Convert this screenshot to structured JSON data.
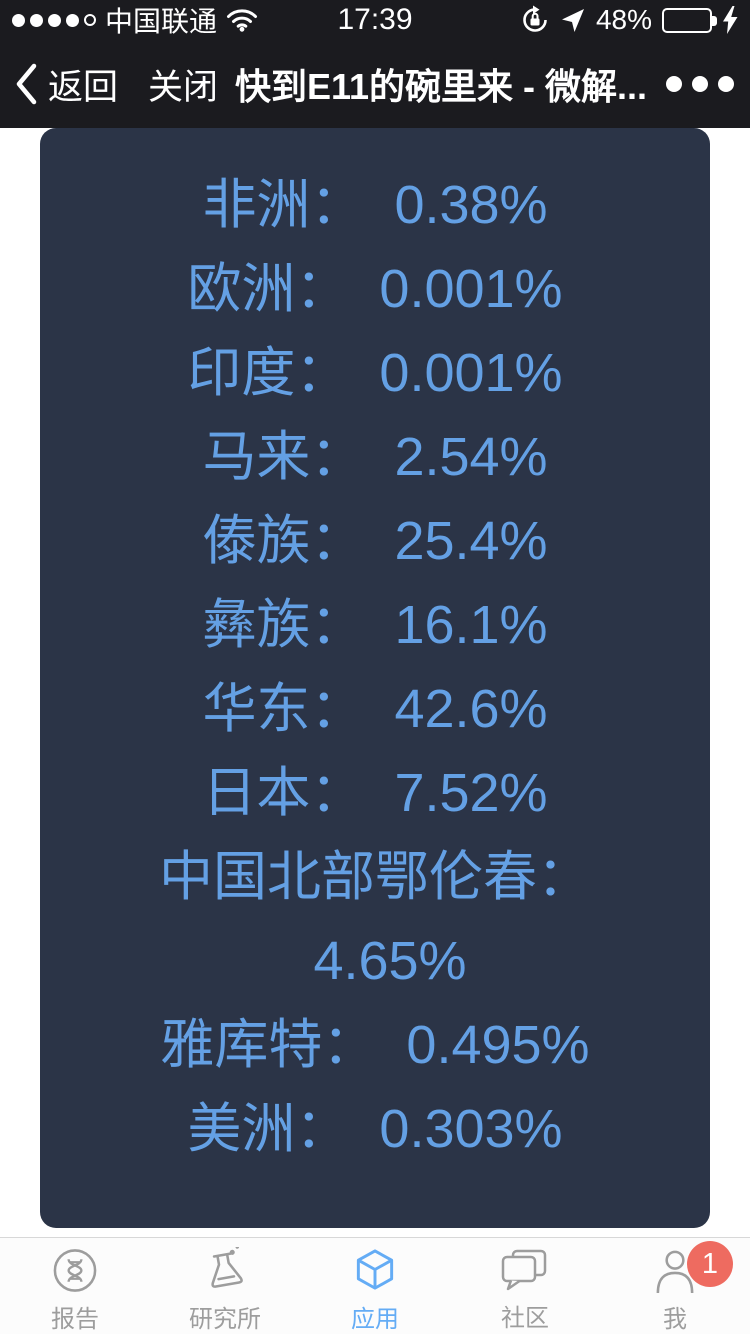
{
  "colors": {
    "chrome_bg": "#1b1b1f",
    "card_bg": "#2b3447",
    "card_text": "#64a0e4",
    "tab_active": "#64acf5",
    "tab_inactive": "#9d9d9d",
    "badge_bg": "#ee6b60",
    "battery_green": "#7bd77a",
    "tabbar_bg": "#fcfcfc",
    "tabbar_border": "#d8d8d8"
  },
  "status_bar": {
    "signal_filled_dots": 4,
    "signal_total_dots": 5,
    "carrier": "中国联通",
    "time": "17:39",
    "battery_percent": "48%",
    "icons": [
      "signal-dots",
      "wifi-icon",
      "orientation-lock-icon",
      "location-arrow-icon",
      "battery-icon",
      "charging-bolt-icon"
    ]
  },
  "nav_bar": {
    "back_label": "返回",
    "close_label": "关闭",
    "title": "快到E11的碗里来 - 微解...",
    "menu_icon": "more-dots-icon"
  },
  "ancestry_rows": [
    {
      "label": "非洲：",
      "value": "0.38%"
    },
    {
      "label": "欧洲：",
      "value": "0.001%"
    },
    {
      "label": "印度：",
      "value": "0.001%"
    },
    {
      "label": "马来：",
      "value": "2.54%"
    },
    {
      "label": "傣族：",
      "value": "25.4%"
    },
    {
      "label": "彝族：",
      "value": "16.1%"
    },
    {
      "label": "华东：",
      "value": "42.6%"
    },
    {
      "label": "日本：",
      "value": "7.52%"
    },
    {
      "label": "中国北部鄂伦春：",
      "value": "4.65%"
    },
    {
      "label": "雅库特：",
      "value": "0.495%"
    },
    {
      "label": "美洲：",
      "value": "0.303%"
    }
  ],
  "tab_bar": {
    "items": [
      {
        "label": "报告",
        "icon": "dna-report-icon",
        "active": false
      },
      {
        "label": "研究所",
        "icon": "flask-icon",
        "active": false
      },
      {
        "label": "应用",
        "icon": "cube-icon",
        "active": true
      },
      {
        "label": "社区",
        "icon": "chat-icon",
        "active": false
      },
      {
        "label": "我",
        "icon": "person-icon",
        "active": false,
        "badge": "1"
      }
    ]
  }
}
